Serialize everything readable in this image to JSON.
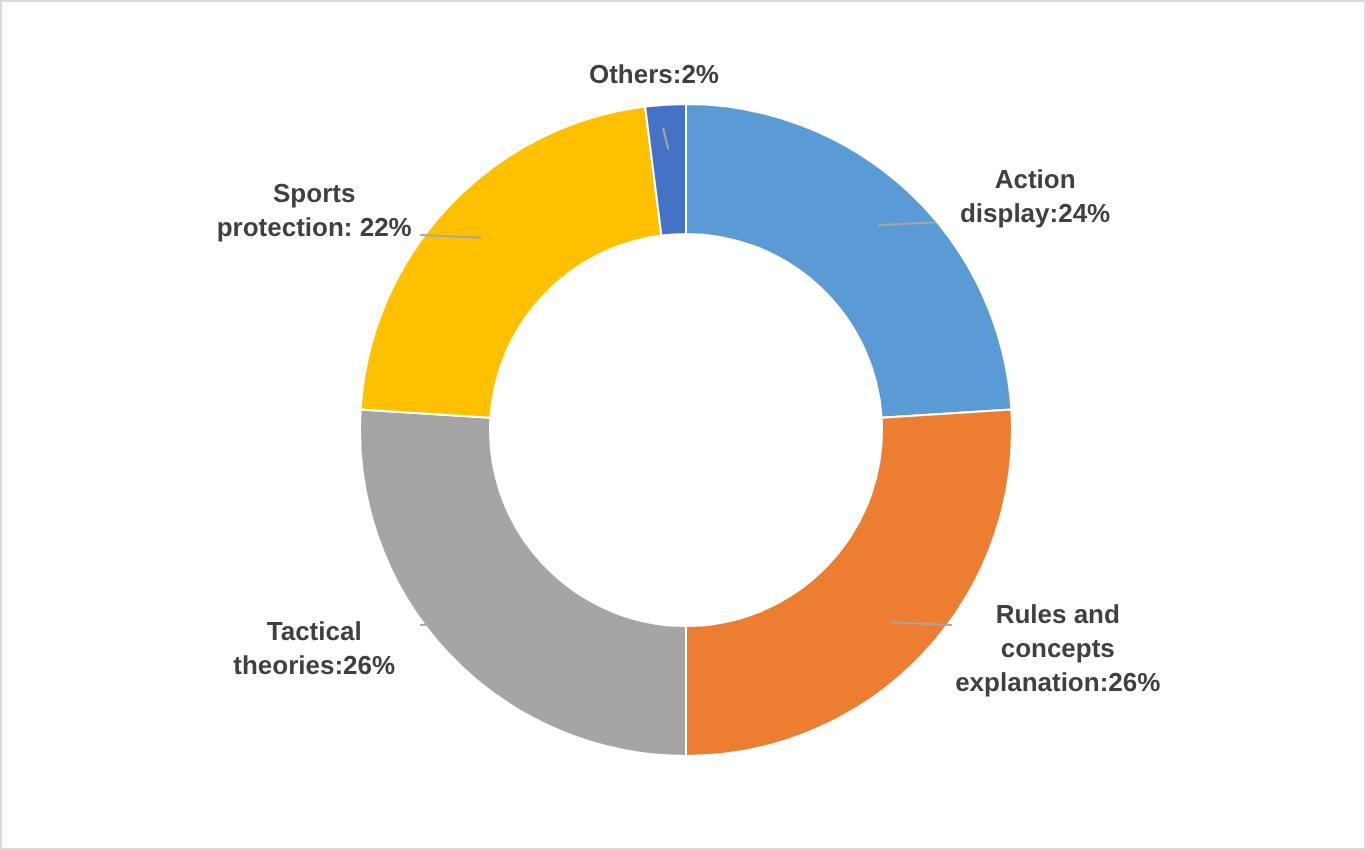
{
  "chart_data": {
    "type": "donut",
    "categories": [
      "Action display",
      "Rules and concepts explanation",
      "Tactical theories",
      "Sports protection",
      "Others"
    ],
    "values": [
      24,
      26,
      26,
      22,
      2
    ],
    "colors": [
      "#5b9bd5",
      "#ed7d31",
      "#a5a5a5",
      "#ffc000",
      "#4472c4"
    ],
    "value_labels": [
      ":24%",
      ":26%",
      ":26%",
      ": 22%",
      ":2%"
    ]
  }
}
